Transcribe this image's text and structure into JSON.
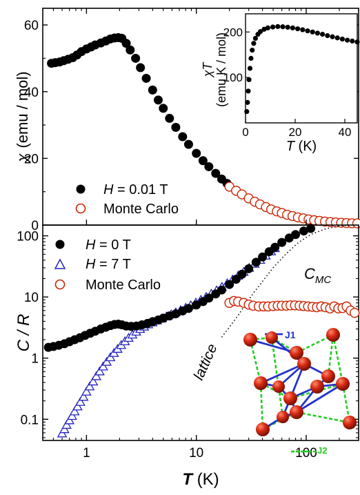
{
  "chart_data": [
    {
      "panel": "top",
      "type": "scatter",
      "ylabel_symbol": "χ",
      "ylabel_unit": "(emu / mol)",
      "ylim": [
        0,
        65
      ],
      "yticks": [
        0,
        20,
        40,
        60
      ],
      "xscale": "log",
      "xlim": [
        0.4,
        300
      ],
      "legend_position": "bottom-left",
      "series": [
        {
          "name_symbol": "H",
          "name_rest": " = 0.01 T",
          "marker": "filled-circle",
          "color": "#000000",
          "points": [
            [
              0.48,
              48.5
            ],
            [
              0.52,
              48.7
            ],
            [
              0.57,
              48.9
            ],
            [
              0.62,
              49.3
            ],
            [
              0.68,
              49.7
            ],
            [
              0.75,
              50.2
            ],
            [
              0.82,
              51.0
            ],
            [
              0.9,
              52.0
            ],
            [
              1.0,
              52.8
            ],
            [
              1.1,
              53.4
            ],
            [
              1.2,
              54.0
            ],
            [
              1.35,
              54.6
            ],
            [
              1.5,
              55.2
            ],
            [
              1.65,
              55.8
            ],
            [
              1.8,
              56.1
            ],
            [
              1.95,
              56.2
            ],
            [
              2.1,
              56.0
            ],
            [
              2.3,
              54.5
            ],
            [
              2.5,
              52.5
            ],
            [
              2.8,
              50.0
            ],
            [
              3.1,
              47.2
            ],
            [
              3.5,
              44.0
            ],
            [
              4.0,
              40.5
            ],
            [
              4.5,
              37.5
            ],
            [
              5.0,
              35.0
            ],
            [
              5.7,
              32.0
            ],
            [
              6.5,
              29.3
            ],
            [
              7.5,
              26.5
            ],
            [
              8.5,
              24.2
            ],
            [
              10,
              21.5
            ],
            [
              11.5,
              19.3
            ],
            [
              13,
              17.5
            ],
            [
              15,
              15.5
            ],
            [
              17,
              13.8
            ],
            [
              19,
              12.5
            ]
          ]
        },
        {
          "name": "Monte Carlo",
          "marker": "open-circle",
          "color": "#cc2200",
          "points": [
            [
              20,
              11.5
            ],
            [
              23,
              10.3
            ],
            [
              26,
              9.2
            ],
            [
              30,
              8.0
            ],
            [
              34,
              7.0
            ],
            [
              38,
              6.2
            ],
            [
              43,
              5.4
            ],
            [
              48,
              4.7
            ],
            [
              54,
              4.1
            ],
            [
              60,
              3.6
            ],
            [
              67,
              3.1
            ],
            [
              75,
              2.7
            ],
            [
              84,
              2.3
            ],
            [
              94,
              2.0
            ],
            [
              105,
              1.7
            ],
            [
              118,
              1.45
            ],
            [
              132,
              1.25
            ],
            [
              148,
              1.05
            ],
            [
              166,
              0.9
            ],
            [
              186,
              0.78
            ],
            [
              208,
              0.68
            ],
            [
              233,
              0.6
            ],
            [
              261,
              0.54
            ],
            [
              292,
              0.5
            ]
          ]
        }
      ]
    },
    {
      "panel": "inset",
      "type": "scatter",
      "xlabel_symbol": "T",
      "xlabel_unit": " (K)",
      "ylabel_symbol": "χT",
      "ylabel_unit": "(emu K / mol)",
      "xlim": [
        0,
        45
      ],
      "xticks": [
        0,
        20,
        40
      ],
      "ylim": [
        0,
        240
      ],
      "yticks": [
        100,
        200
      ],
      "series": [
        {
          "marker": "filled-circle",
          "color": "#000000",
          "points": [
            [
              0.5,
              25
            ],
            [
              0.8,
              45
            ],
            [
              1.1,
              70
            ],
            [
              1.4,
              95
            ],
            [
              1.8,
              120
            ],
            [
              2.2,
              142
            ],
            [
              2.7,
              160
            ],
            [
              3.3,
              175
            ],
            [
              4.0,
              186
            ],
            [
              5.0,
              195
            ],
            [
              6.0,
              201
            ],
            [
              7.5,
              206
            ],
            [
              9.0,
              209
            ],
            [
              11,
              211
            ],
            [
              13,
              212
            ],
            [
              15,
              211.5
            ],
            [
              17,
              210.5
            ],
            [
              19,
              209
            ],
            [
              21,
              207
            ],
            [
              23,
              205
            ],
            [
              25,
              202.5
            ],
            [
              27,
              200
            ],
            [
              29,
              197.5
            ],
            [
              31,
              195
            ],
            [
              33,
              192
            ],
            [
              35,
              189.5
            ],
            [
              37,
              187
            ],
            [
              39,
              184.5
            ],
            [
              41,
              182
            ],
            [
              43,
              180
            ],
            [
              45,
              178
            ]
          ]
        }
      ]
    },
    {
      "panel": "bottom",
      "type": "scatter",
      "xlabel_symbol": "T",
      "xlabel_unit": " (K)",
      "ylabel": "C / R",
      "xscale": "log",
      "yscale": "log",
      "xlim": [
        0.4,
        300
      ],
      "xticks": [
        1,
        10,
        100
      ],
      "ylim": [
        0.045,
        150
      ],
      "yticks": [
        0.1,
        1,
        10,
        100
      ],
      "legend_position": "top-left",
      "series": [
        {
          "name_symbol": "H",
          "name_rest": " = 0 T",
          "marker": "filled-circle",
          "color": "#000000",
          "points": [
            [
              0.45,
              1.5
            ],
            [
              0.5,
              1.55
            ],
            [
              0.56,
              1.62
            ],
            [
              0.63,
              1.72
            ],
            [
              0.7,
              1.85
            ],
            [
              0.78,
              2.0
            ],
            [
              0.87,
              2.15
            ],
            [
              0.97,
              2.35
            ],
            [
              1.08,
              2.55
            ],
            [
              1.2,
              2.75
            ],
            [
              1.35,
              3.0
            ],
            [
              1.5,
              3.2
            ],
            [
              1.65,
              3.4
            ],
            [
              1.8,
              3.55
            ],
            [
              1.95,
              3.6
            ],
            [
              2.1,
              3.5
            ],
            [
              2.3,
              3.35
            ],
            [
              2.55,
              3.3
            ],
            [
              2.85,
              3.35
            ],
            [
              3.2,
              3.5
            ],
            [
              3.6,
              3.7
            ],
            [
              4.0,
              3.95
            ],
            [
              4.5,
              4.2
            ],
            [
              5.0,
              4.5
            ],
            [
              5.7,
              4.9
            ],
            [
              6.5,
              5.3
            ],
            [
              7.5,
              5.9
            ],
            [
              8.5,
              6.5
            ],
            [
              10,
              7.4
            ],
            [
              11.5,
              8.4
            ],
            [
              13,
              9.6
            ],
            [
              15,
              11.2
            ],
            [
              17,
              13.0
            ],
            [
              20,
              16.0
            ],
            [
              23,
              19.5
            ],
            [
              26,
              23.5
            ],
            [
              30,
              29.0
            ],
            [
              35,
              37.0
            ],
            [
              40,
              45.0
            ],
            [
              46,
              55.0
            ],
            [
              52,
              65.0
            ],
            [
              60,
              78.0
            ],
            [
              70,
              92.0
            ],
            [
              80,
              105.0
            ],
            [
              95,
              120.0
            ],
            [
              110,
              132.0
            ]
          ]
        },
        {
          "name_symbol": "H",
          "name_rest": " = 7 T",
          "marker": "open-triangle",
          "color": "#2222bb",
          "points": [
            [
              0.6,
              0.058
            ],
            [
              0.63,
              0.068
            ],
            [
              0.66,
              0.08
            ],
            [
              0.7,
              0.095
            ],
            [
              0.74,
              0.112
            ],
            [
              0.78,
              0.133
            ],
            [
              0.83,
              0.16
            ],
            [
              0.88,
              0.19
            ],
            [
              0.94,
              0.23
            ],
            [
              1.0,
              0.28
            ],
            [
              1.07,
              0.34
            ],
            [
              1.15,
              0.41
            ],
            [
              1.23,
              0.5
            ],
            [
              1.32,
              0.6
            ],
            [
              1.42,
              0.72
            ],
            [
              1.53,
              0.86
            ],
            [
              1.65,
              1.02
            ],
            [
              1.78,
              1.2
            ],
            [
              1.92,
              1.4
            ],
            [
              2.07,
              1.62
            ],
            [
              2.24,
              1.86
            ],
            [
              2.42,
              2.12
            ],
            [
              2.62,
              2.4
            ],
            [
              2.84,
              2.68
            ],
            [
              3.08,
              2.96
            ],
            [
              3.35,
              3.24
            ],
            [
              3.65,
              3.52
            ],
            [
              4.0,
              3.8
            ],
            [
              4.4,
              4.1
            ],
            [
              4.85,
              4.4
            ],
            [
              5.35,
              4.75
            ],
            [
              5.9,
              5.15
            ],
            [
              6.5,
              5.55
            ],
            [
              7.2,
              6.05
            ],
            [
              8.0,
              6.6
            ],
            [
              8.9,
              7.25
            ],
            [
              9.9,
              8.0
            ],
            [
              11,
              8.9
            ],
            [
              12.3,
              9.95
            ],
            [
              13.7,
              11.2
            ],
            [
              15.3,
              12.7
            ],
            [
              17.1,
              14.5
            ],
            [
              19.1,
              16.6
            ],
            [
              21.4,
              19.1
            ],
            [
              24,
              22.0
            ],
            [
              27,
              25.5
            ],
            [
              30.3,
              29.7
            ],
            [
              34,
              34.5
            ],
            [
              38.2,
              40.0
            ],
            [
              42.9,
              47.0
            ],
            [
              48,
              55.0
            ],
            [
              52,
              62.0
            ]
          ]
        },
        {
          "name": "Monte Carlo",
          "marker": "open-circle",
          "color": "#cc2200",
          "points": [
            [
              20,
              8.0
            ],
            [
              22,
              8.6
            ],
            [
              24,
              8.4
            ],
            [
              27,
              8.0
            ],
            [
              30,
              7.5
            ],
            [
              33,
              7.2
            ],
            [
              37,
              7.0
            ],
            [
              41,
              7.0
            ],
            [
              45,
              7.0
            ],
            [
              50,
              7.1
            ],
            [
              55,
              7.2
            ],
            [
              60,
              7.2
            ],
            [
              66,
              7.2
            ],
            [
              72,
              7.3
            ],
            [
              79,
              7.3
            ],
            [
              87,
              7.2
            ],
            [
              95,
              7.1
            ],
            [
              104,
              7.0
            ],
            [
              114,
              6.9
            ],
            [
              125,
              6.8
            ],
            [
              137,
              7.0
            ],
            [
              150,
              6.8
            ],
            [
              165,
              6.5
            ],
            [
              180,
              7.0
            ],
            [
              196,
              6.5
            ],
            [
              214,
              6.6
            ],
            [
              233,
              7.0
            ],
            [
              254,
              6.0
            ],
            [
              276,
              5.5
            ]
          ]
        },
        {
          "name": "lattice",
          "marker": "dotted-line",
          "color": "#000000",
          "points": [
            [
              17,
              2.2
            ],
            [
              20,
              3.2
            ],
            [
              24,
              5.0
            ],
            [
              28,
              7.5
            ],
            [
              33,
              11.5
            ],
            [
              40,
              18
            ],
            [
              50,
              30
            ],
            [
              65,
              50
            ],
            [
              85,
              78
            ],
            [
              110,
              105
            ],
            [
              150,
              130
            ],
            [
              200,
              145
            ],
            [
              260,
              150
            ]
          ]
        }
      ]
    }
  ],
  "annotations": {
    "cmc_main": "C",
    "cmc_sub": "MC",
    "lattice": "lattice",
    "j1": "J1",
    "j2": "J2"
  }
}
